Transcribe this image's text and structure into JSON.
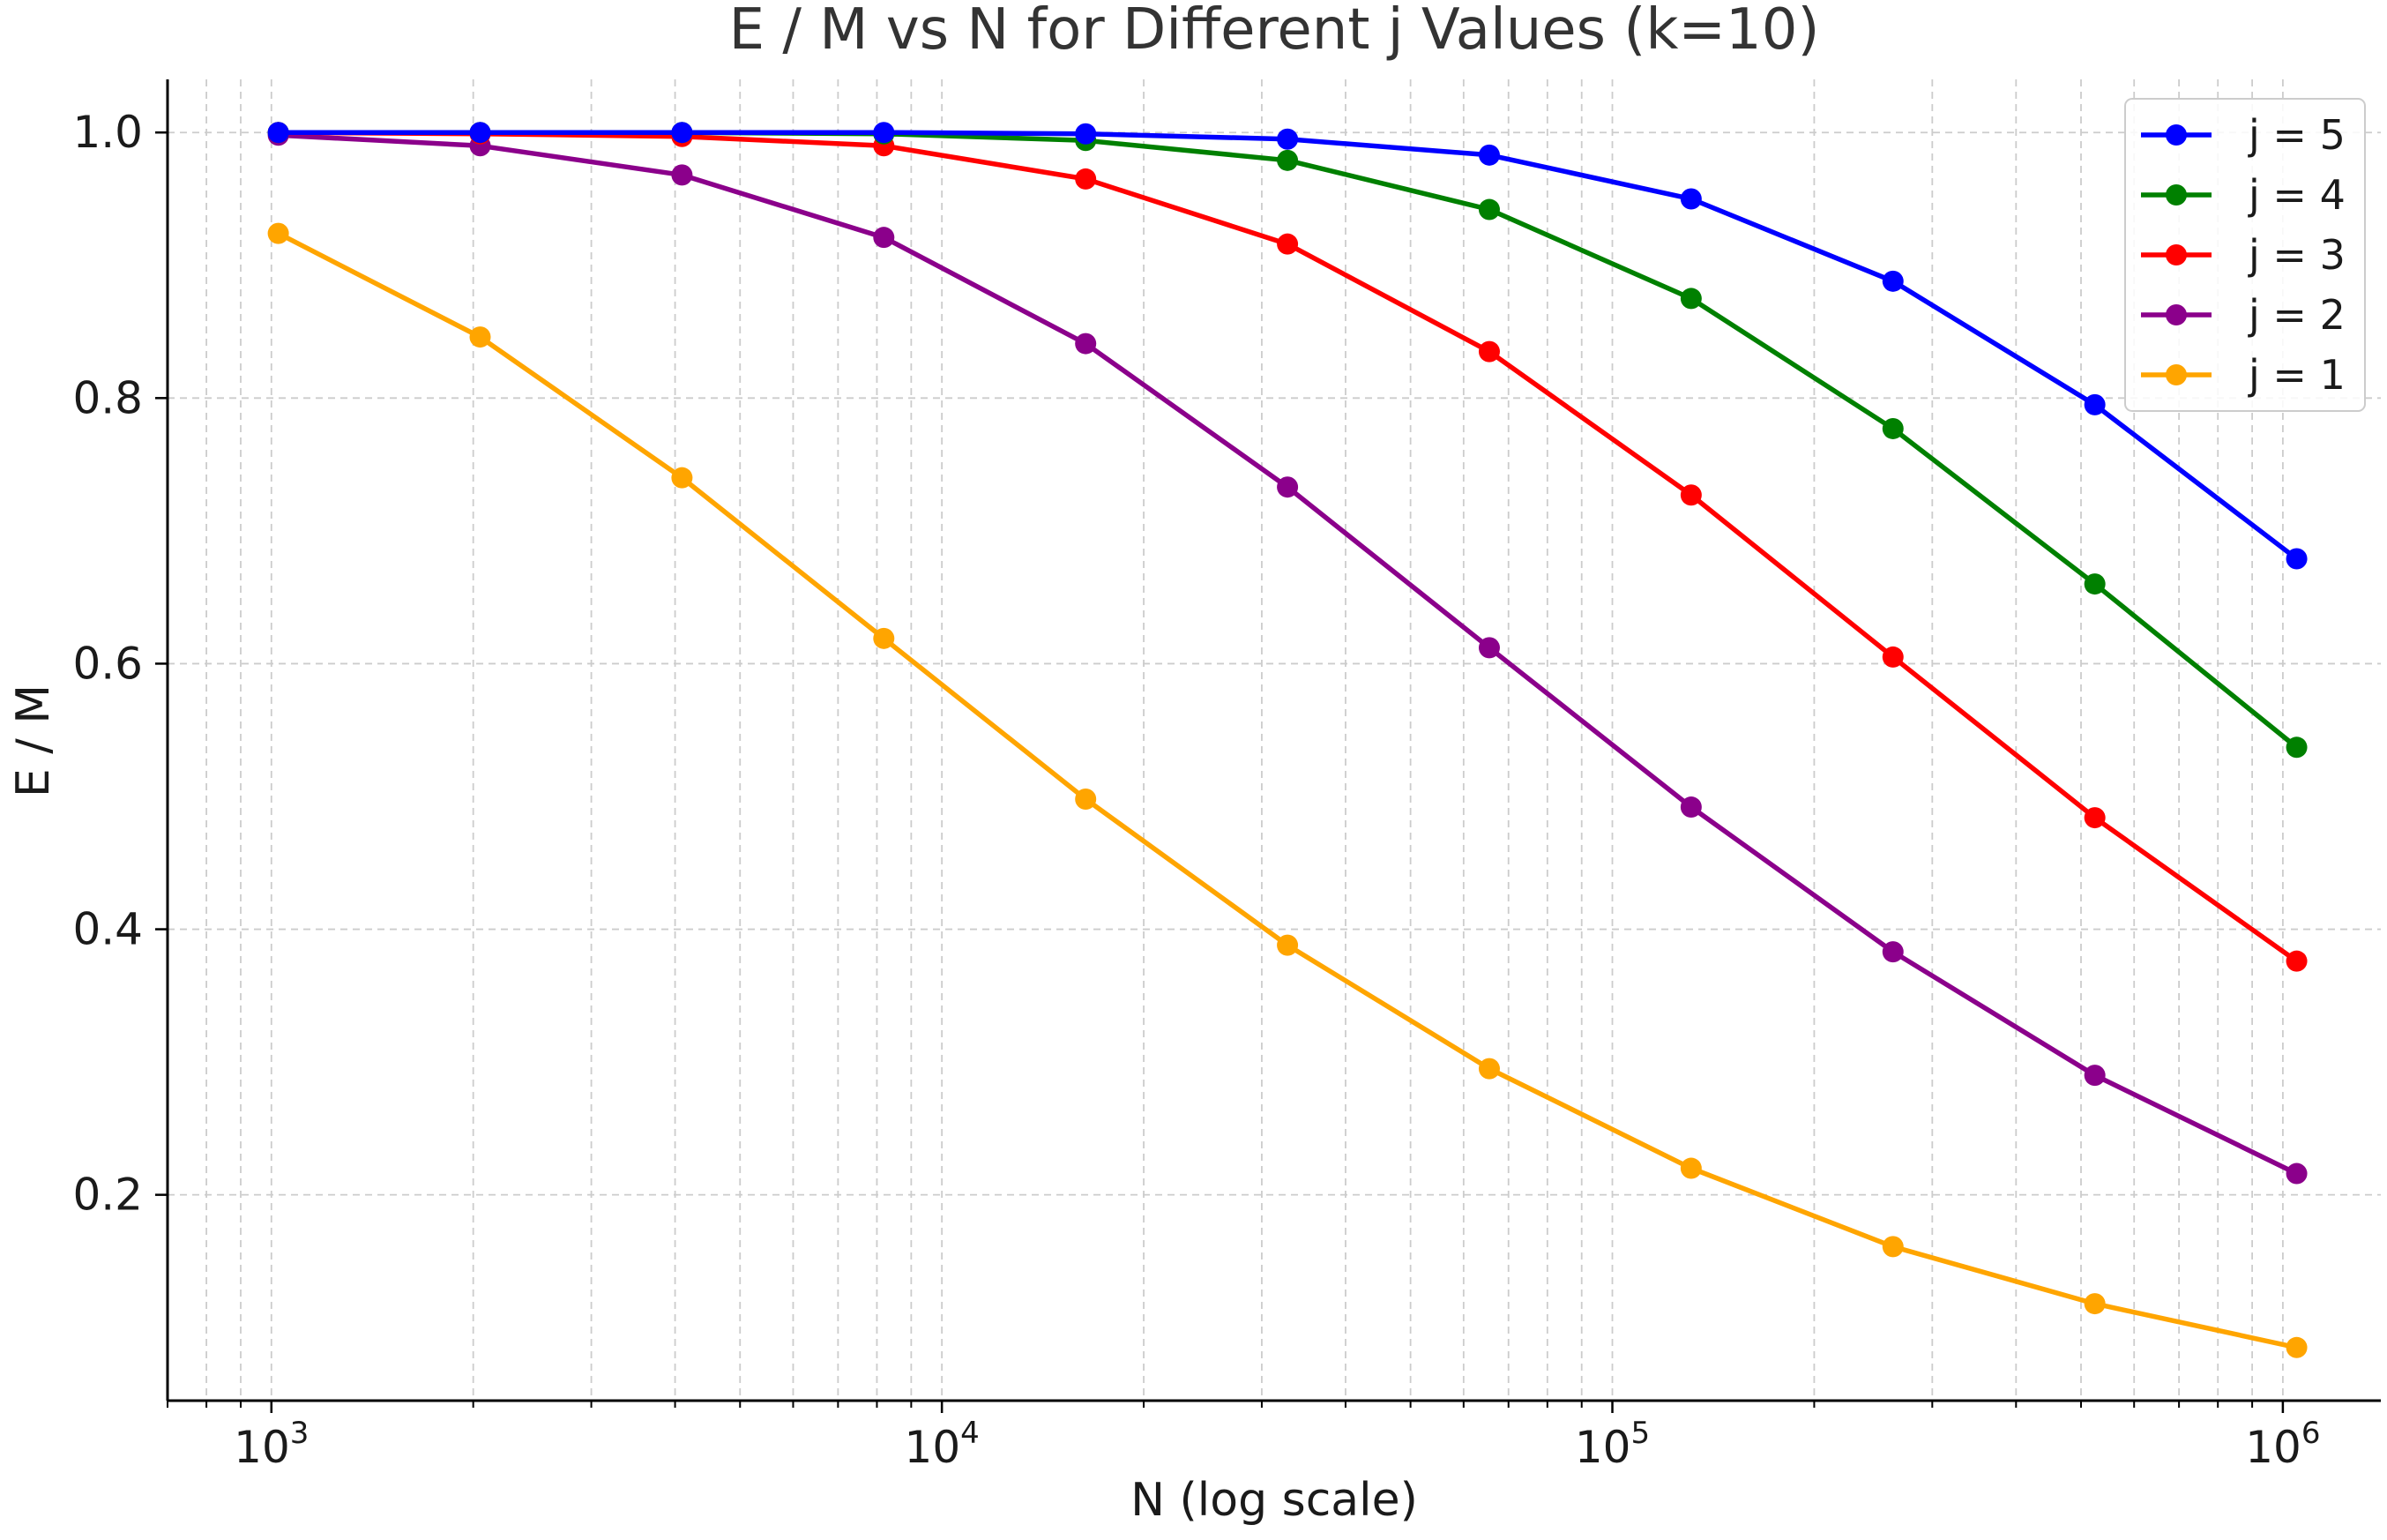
{
  "chart_data": {
    "type": "line",
    "title": "E / M vs N for Different j Values (k=10)",
    "xlabel": "N (log scale)",
    "ylabel": "E / M",
    "x_scale": "log",
    "xlim": [
      700,
      1400000
    ],
    "ylim": [
      0.045,
      1.04
    ],
    "grid": true,
    "legend_position": "top-right",
    "x": [
      1024,
      2048,
      4096,
      8192,
      16384,
      32768,
      65536,
      131072,
      262144,
      524288,
      1048576
    ],
    "x_ticks": [
      {
        "value": 1000,
        "base": "10",
        "exp": "3"
      },
      {
        "value": 10000,
        "base": "10",
        "exp": "4"
      },
      {
        "value": 100000,
        "base": "10",
        "exp": "5"
      },
      {
        "value": 1000000,
        "base": "10",
        "exp": "6"
      }
    ],
    "y_ticks": [
      {
        "value": 0.2,
        "label": "0.2"
      },
      {
        "value": 0.4,
        "label": "0.4"
      },
      {
        "value": 0.6,
        "label": "0.6"
      },
      {
        "value": 0.8,
        "label": "0.8"
      },
      {
        "value": 1.0,
        "label": "1.0"
      }
    ],
    "series": [
      {
        "name": "j = 5",
        "color": "#0000ff",
        "values": [
          1.0,
          1.0,
          1.0,
          1.0,
          0.999,
          0.995,
          0.983,
          0.95,
          0.888,
          0.795,
          0.679
        ]
      },
      {
        "name": "j = 4",
        "color": "#008000",
        "values": [
          1.0,
          1.0,
          1.0,
          0.999,
          0.994,
          0.979,
          0.942,
          0.875,
          0.777,
          0.66,
          0.537
        ]
      },
      {
        "name": "j = 3",
        "color": "#ff0000",
        "values": [
          1.0,
          0.999,
          0.997,
          0.99,
          0.965,
          0.916,
          0.835,
          0.727,
          0.605,
          0.484,
          0.376
        ]
      },
      {
        "name": "j = 2",
        "color": "#8b008b",
        "values": [
          0.998,
          0.99,
          0.968,
          0.921,
          0.841,
          0.733,
          0.612,
          0.492,
          0.383,
          0.29,
          0.216
        ]
      },
      {
        "name": "j = 1",
        "color": "#ffa500",
        "values": [
          0.924,
          0.846,
          0.74,
          0.619,
          0.498,
          0.388,
          0.295,
          0.22,
          0.161,
          0.118,
          0.085
        ]
      }
    ]
  }
}
